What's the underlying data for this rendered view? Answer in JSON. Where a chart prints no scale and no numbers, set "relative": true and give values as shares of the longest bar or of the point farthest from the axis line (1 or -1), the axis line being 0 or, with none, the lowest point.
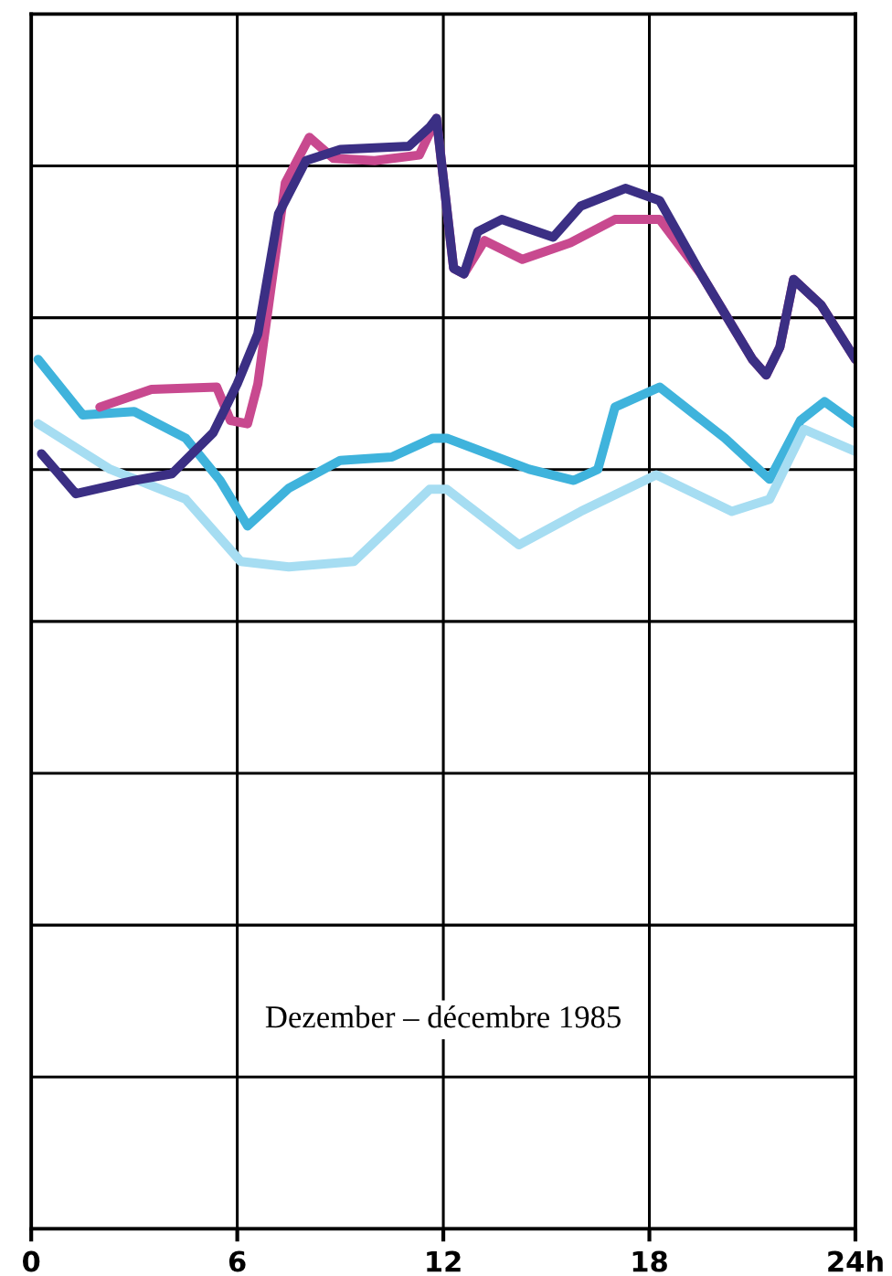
{
  "chart_data": {
    "type": "line",
    "relative": true,
    "xlim": [
      0,
      24
    ],
    "xticks": [
      0,
      6,
      12,
      18,
      {
        "value": 24,
        "label": "24h"
      }
    ],
    "grid": true,
    "tick_labels": "x",
    "line_style": "solid",
    "annotations": [
      "Dezember – décembre 1985"
    ],
    "series": [
      {
        "color": "#3fb3dc",
        "x": [
          0.2,
          1.5,
          3,
          4.5,
          5.5,
          6.3,
          7.5,
          9,
          10.5,
          11.7,
          12.1,
          14.5,
          15.8,
          16.5,
          17,
          18.3,
          20.2,
          21.5,
          22.4,
          23.1,
          24
        ],
        "values": [
          0.783,
          0.733,
          0.736,
          0.712,
          0.674,
          0.633,
          0.667,
          0.692,
          0.695,
          0.712,
          0.712,
          0.684,
          0.674,
          0.684,
          0.74,
          0.758,
          0.712,
          0.675,
          0.728,
          0.745,
          0.725
        ]
      },
      {
        "color": "#a6ddf2",
        "x": [
          0.2,
          2.3,
          4.5,
          6.1,
          7.5,
          9.4,
          11.6,
          12.1,
          14.2,
          16,
          18.2,
          20.4,
          21.5,
          22.5,
          24
        ],
        "values": [
          0.725,
          0.684,
          0.657,
          0.601,
          0.596,
          0.601,
          0.666,
          0.666,
          0.616,
          0.646,
          0.679,
          0.646,
          0.657,
          0.72,
          0.7
        ]
      },
      {
        "color": "#c8498f",
        "x": [
          2,
          3.5,
          5.4,
          5.8,
          6.3,
          6.6,
          7.4,
          8.1,
          8.8,
          10,
          11.3,
          11.8,
          12.3,
          12.6,
          13.2,
          14.3,
          15.7,
          17,
          18.3,
          19.5,
          21,
          21.4,
          21.8,
          22.2,
          23,
          24
        ],
        "values": [
          0.74,
          0.756,
          0.758,
          0.728,
          0.725,
          0.761,
          0.942,
          0.983,
          0.964,
          0.962,
          0.967,
          1.0,
          0.865,
          0.86,
          0.89,
          0.873,
          0.888,
          0.909,
          0.909,
          0.86,
          0.783,
          0.769,
          0.794,
          0.855,
          0.832,
          0.783
        ]
      },
      {
        "color": "#3b2f84",
        "x": [
          0.3,
          1.3,
          3,
          4.1,
          5.3,
          6,
          6.6,
          7.2,
          8,
          9,
          11,
          11.6,
          11.8,
          12.3,
          12.6,
          13,
          13.7,
          15.2,
          16,
          17.3,
          18.3,
          19.5,
          21,
          21.4,
          21.8,
          22.2,
          23,
          24
        ],
        "values": [
          0.698,
          0.662,
          0.674,
          0.68,
          0.717,
          0.761,
          0.806,
          0.914,
          0.962,
          0.972,
          0.975,
          0.992,
          1.0,
          0.865,
          0.86,
          0.898,
          0.909,
          0.893,
          0.921,
          0.937,
          0.926,
          0.86,
          0.783,
          0.769,
          0.794,
          0.855,
          0.832,
          0.783
        ]
      }
    ]
  }
}
